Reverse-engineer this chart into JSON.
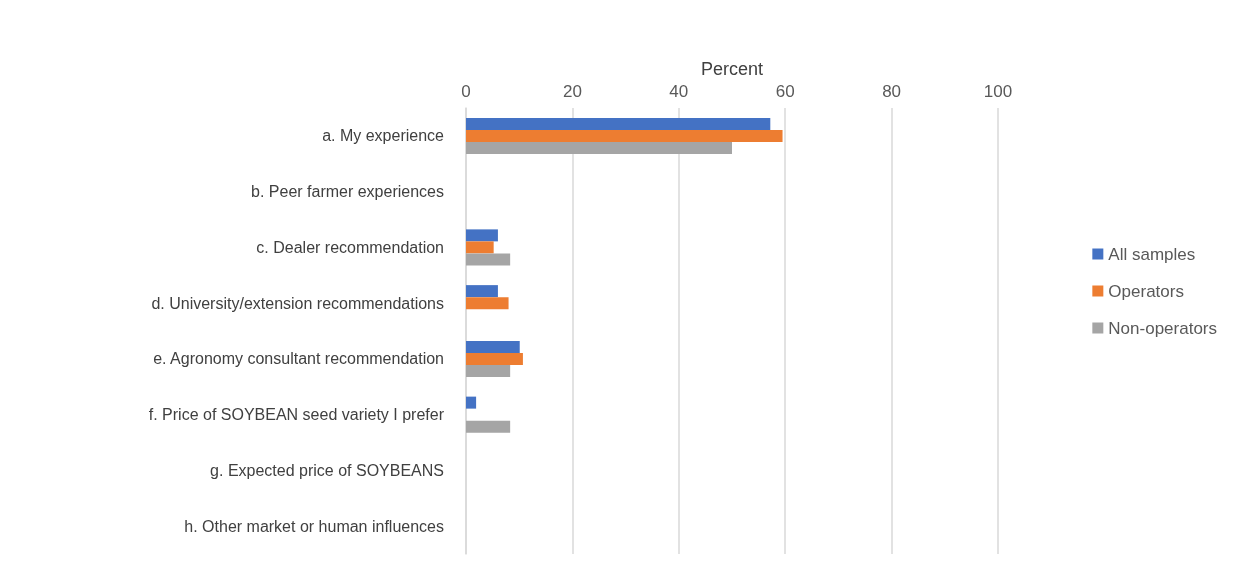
{
  "chart_data": {
    "type": "bar",
    "orientation": "horizontal",
    "xlabel": "Percent",
    "categories": [
      "a. My experience",
      "b. Peer farmer experiences",
      "c. Dealer recommendation",
      "d. University/extension recommendations",
      "e. Agronomy consultant recommendation",
      "f. Price of SOYBEAN seed variety I prefer",
      "g. Expected price of SOYBEANS",
      "h. Other market or human influences"
    ],
    "series": [
      {
        "name": "All samples",
        "color": "#4472c4",
        "values": [
          57.2,
          0,
          6,
          6,
          10.1,
          1.9,
          0,
          0
        ]
      },
      {
        "name": "Operators",
        "color": "#ed7d31",
        "values": [
          59.5,
          0,
          5.2,
          8,
          10.7,
          0,
          0,
          0
        ]
      },
      {
        "name": "Non-operators",
        "color": "#a5a5a5",
        "values": [
          50,
          0,
          8.3,
          0,
          8.3,
          8.3,
          0,
          0
        ]
      }
    ],
    "xlim": [
      0,
      100
    ],
    "xticks": [
      0,
      20,
      40,
      60,
      80,
      100
    ],
    "grid": "x",
    "legend": "right"
  }
}
